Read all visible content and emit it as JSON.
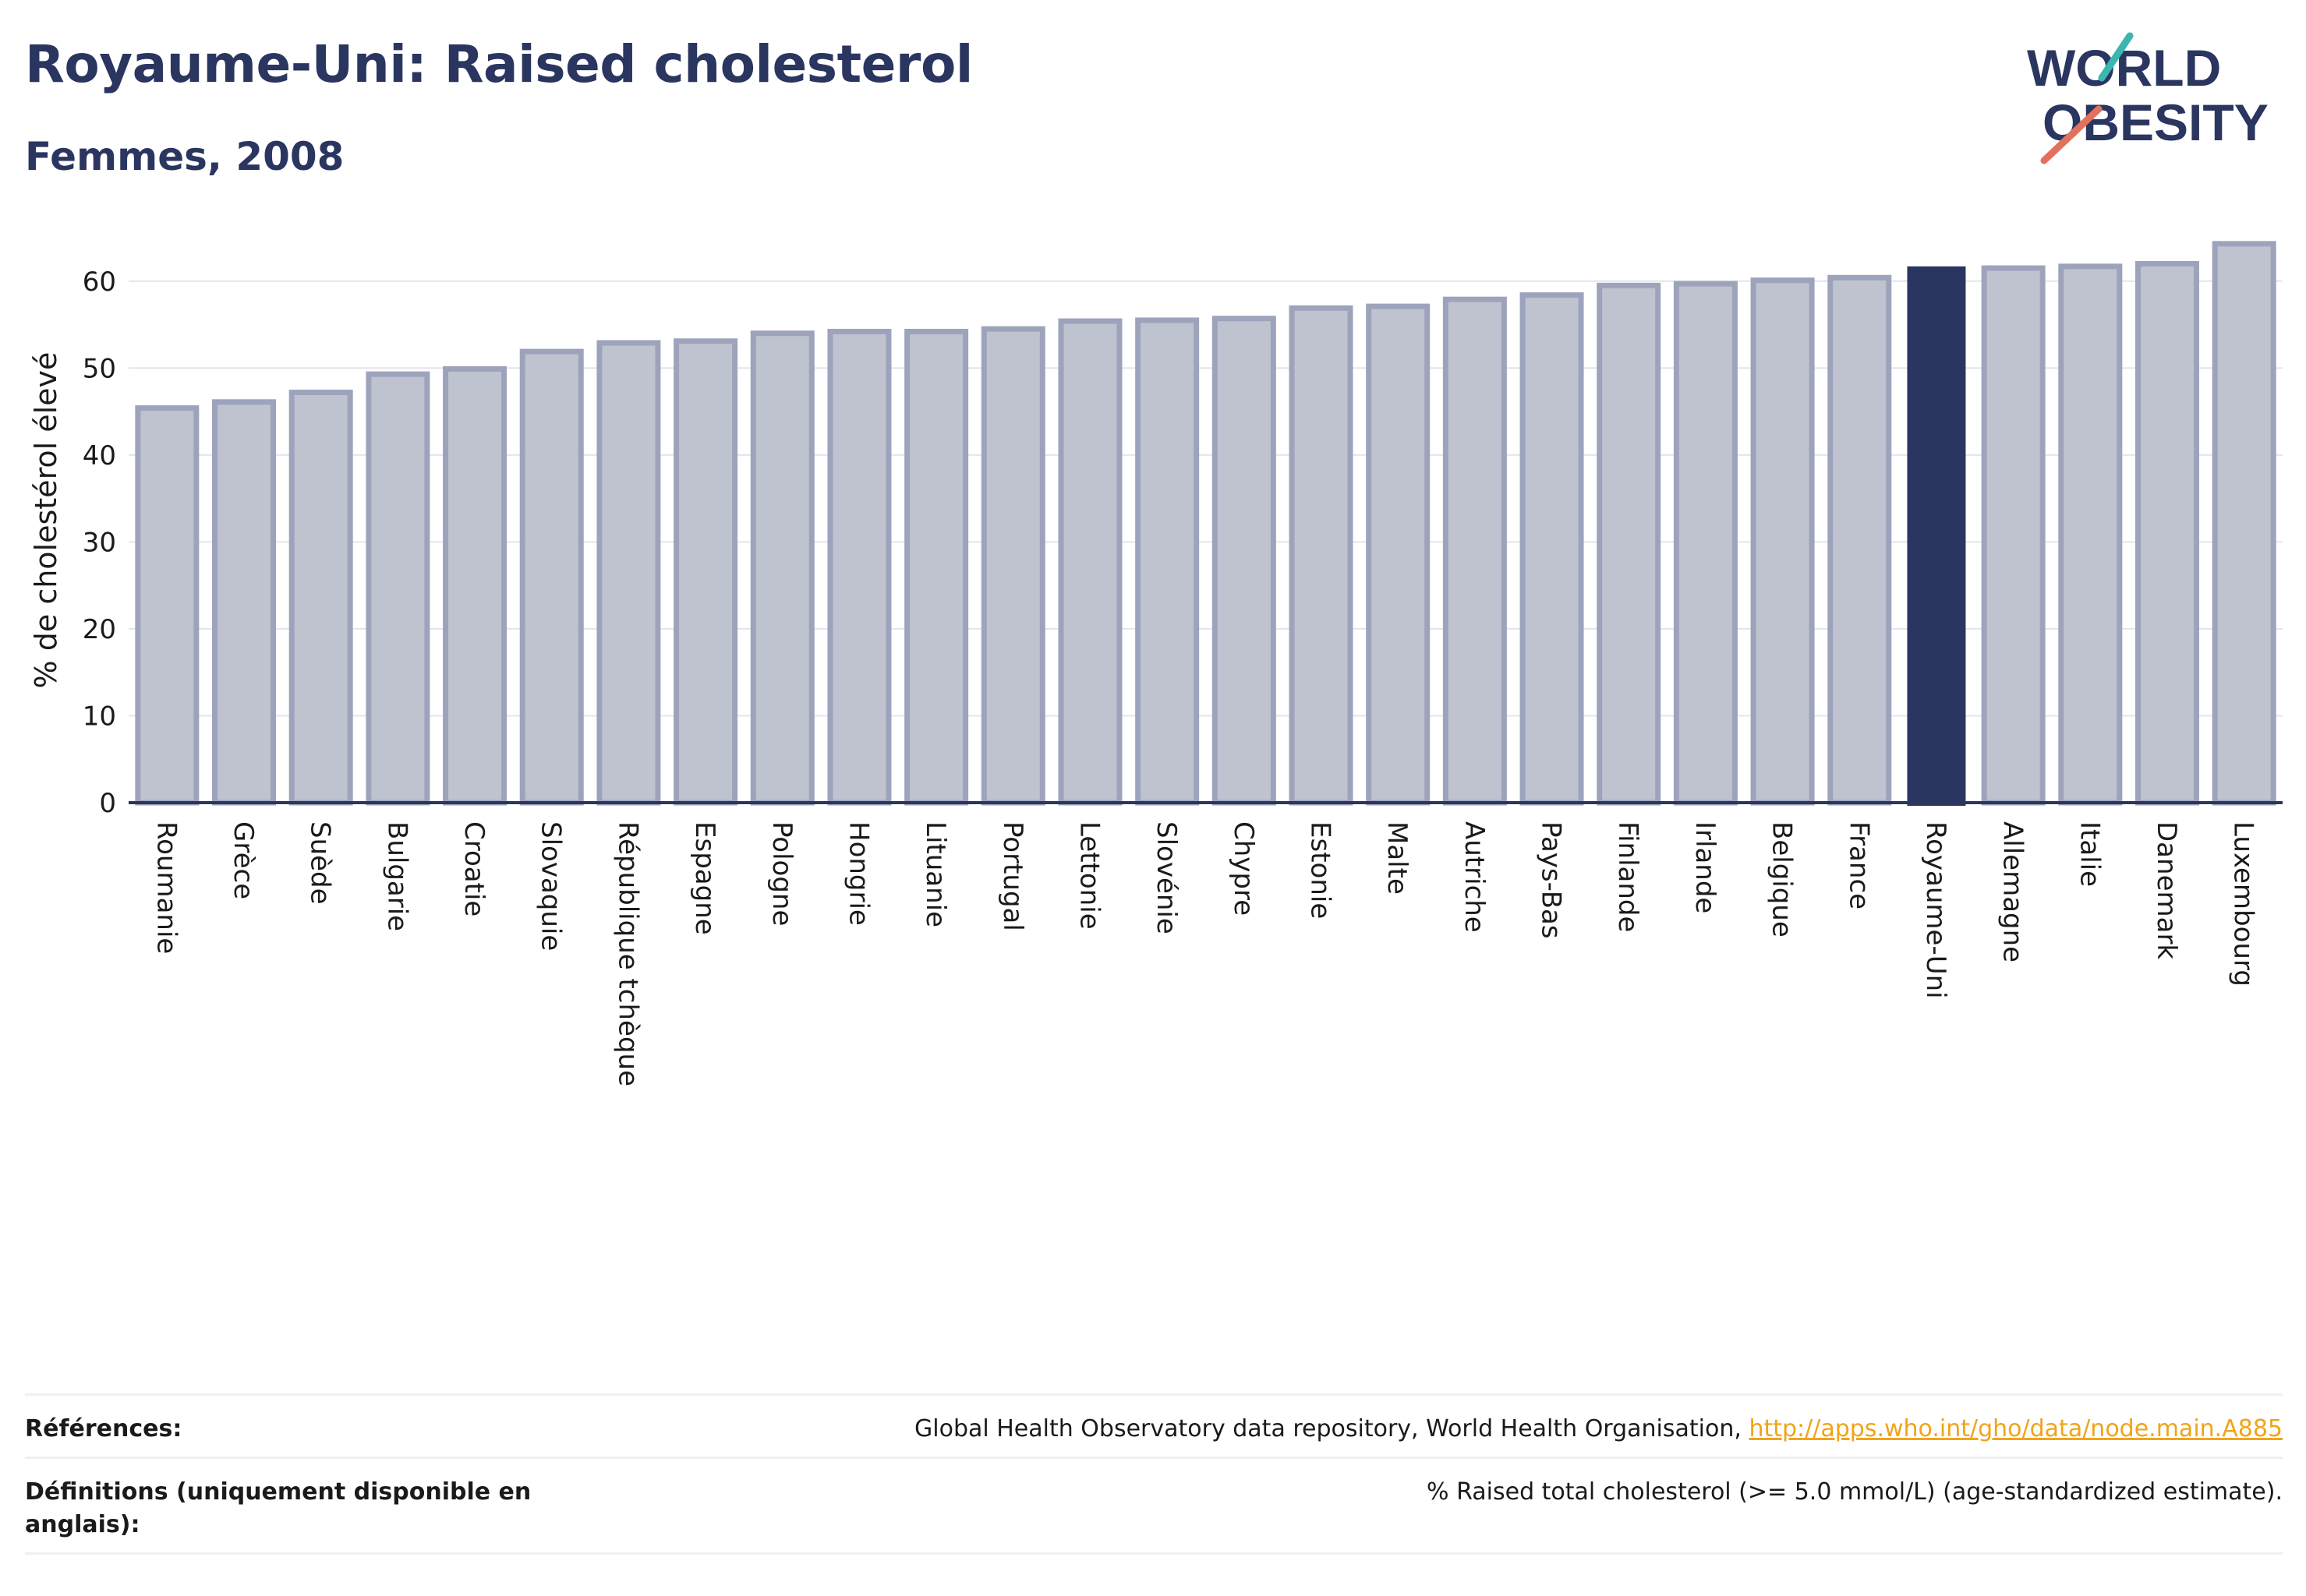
{
  "header": {
    "title": "Royaume-Uni: Raised cholesterol",
    "subtitle": "Femmes, 2008"
  },
  "logo": {
    "line1": "WORLD",
    "line2": "OBESITY"
  },
  "chart_data": {
    "type": "bar",
    "ylabel": "% de cholestérol élevé",
    "xlabel": "",
    "ylim": [
      0,
      65
    ],
    "yticks": [
      0,
      10,
      20,
      30,
      40,
      50,
      60
    ],
    "grid": true,
    "categories": [
      "Roumanie",
      "Grèce",
      "Suède",
      "Bulgarie",
      "Croatie",
      "Slovaquie",
      "République tchèque",
      "Espagne",
      "Pologne",
      "Hongrie",
      "Lituanie",
      "Portugal",
      "Lettonie",
      "Slovénie",
      "Chypre",
      "Estonie",
      "Malte",
      "Autriche",
      "Pays-Bas",
      "Finlande",
      "Irlande",
      "Belgique",
      "France",
      "Royaume-Uni",
      "Allemagne",
      "Italie",
      "Danemark",
      "Luxembourg"
    ],
    "values": [
      45.4,
      46.1,
      47.2,
      49.3,
      49.9,
      51.9,
      52.9,
      53.1,
      54.0,
      54.2,
      54.2,
      54.5,
      55.4,
      55.5,
      55.7,
      56.9,
      57.1,
      57.9,
      58.4,
      59.5,
      59.7,
      60.1,
      60.4,
      61.7,
      61.5,
      61.7,
      62.0,
      64.3
    ],
    "highlight": "Royaume-Uni",
    "colors": {
      "bar": "#bfc3d0",
      "bar_outline": "#9da3bb",
      "highlight": "#2a3560",
      "axis": "#2a3560",
      "grid": "#e3e5ec"
    }
  },
  "footer": {
    "references_label": "Références:",
    "references_text": "Global Health Observatory data repository, World Health Organisation, ",
    "references_link": "http://apps.who.int/gho/data/node.main.A885",
    "definitions_label": "Définitions (uniquement disponible en anglais):",
    "definitions_text": "% Raised total cholesterol (>= 5.0 mmol/L) (age-standardized estimate)."
  }
}
